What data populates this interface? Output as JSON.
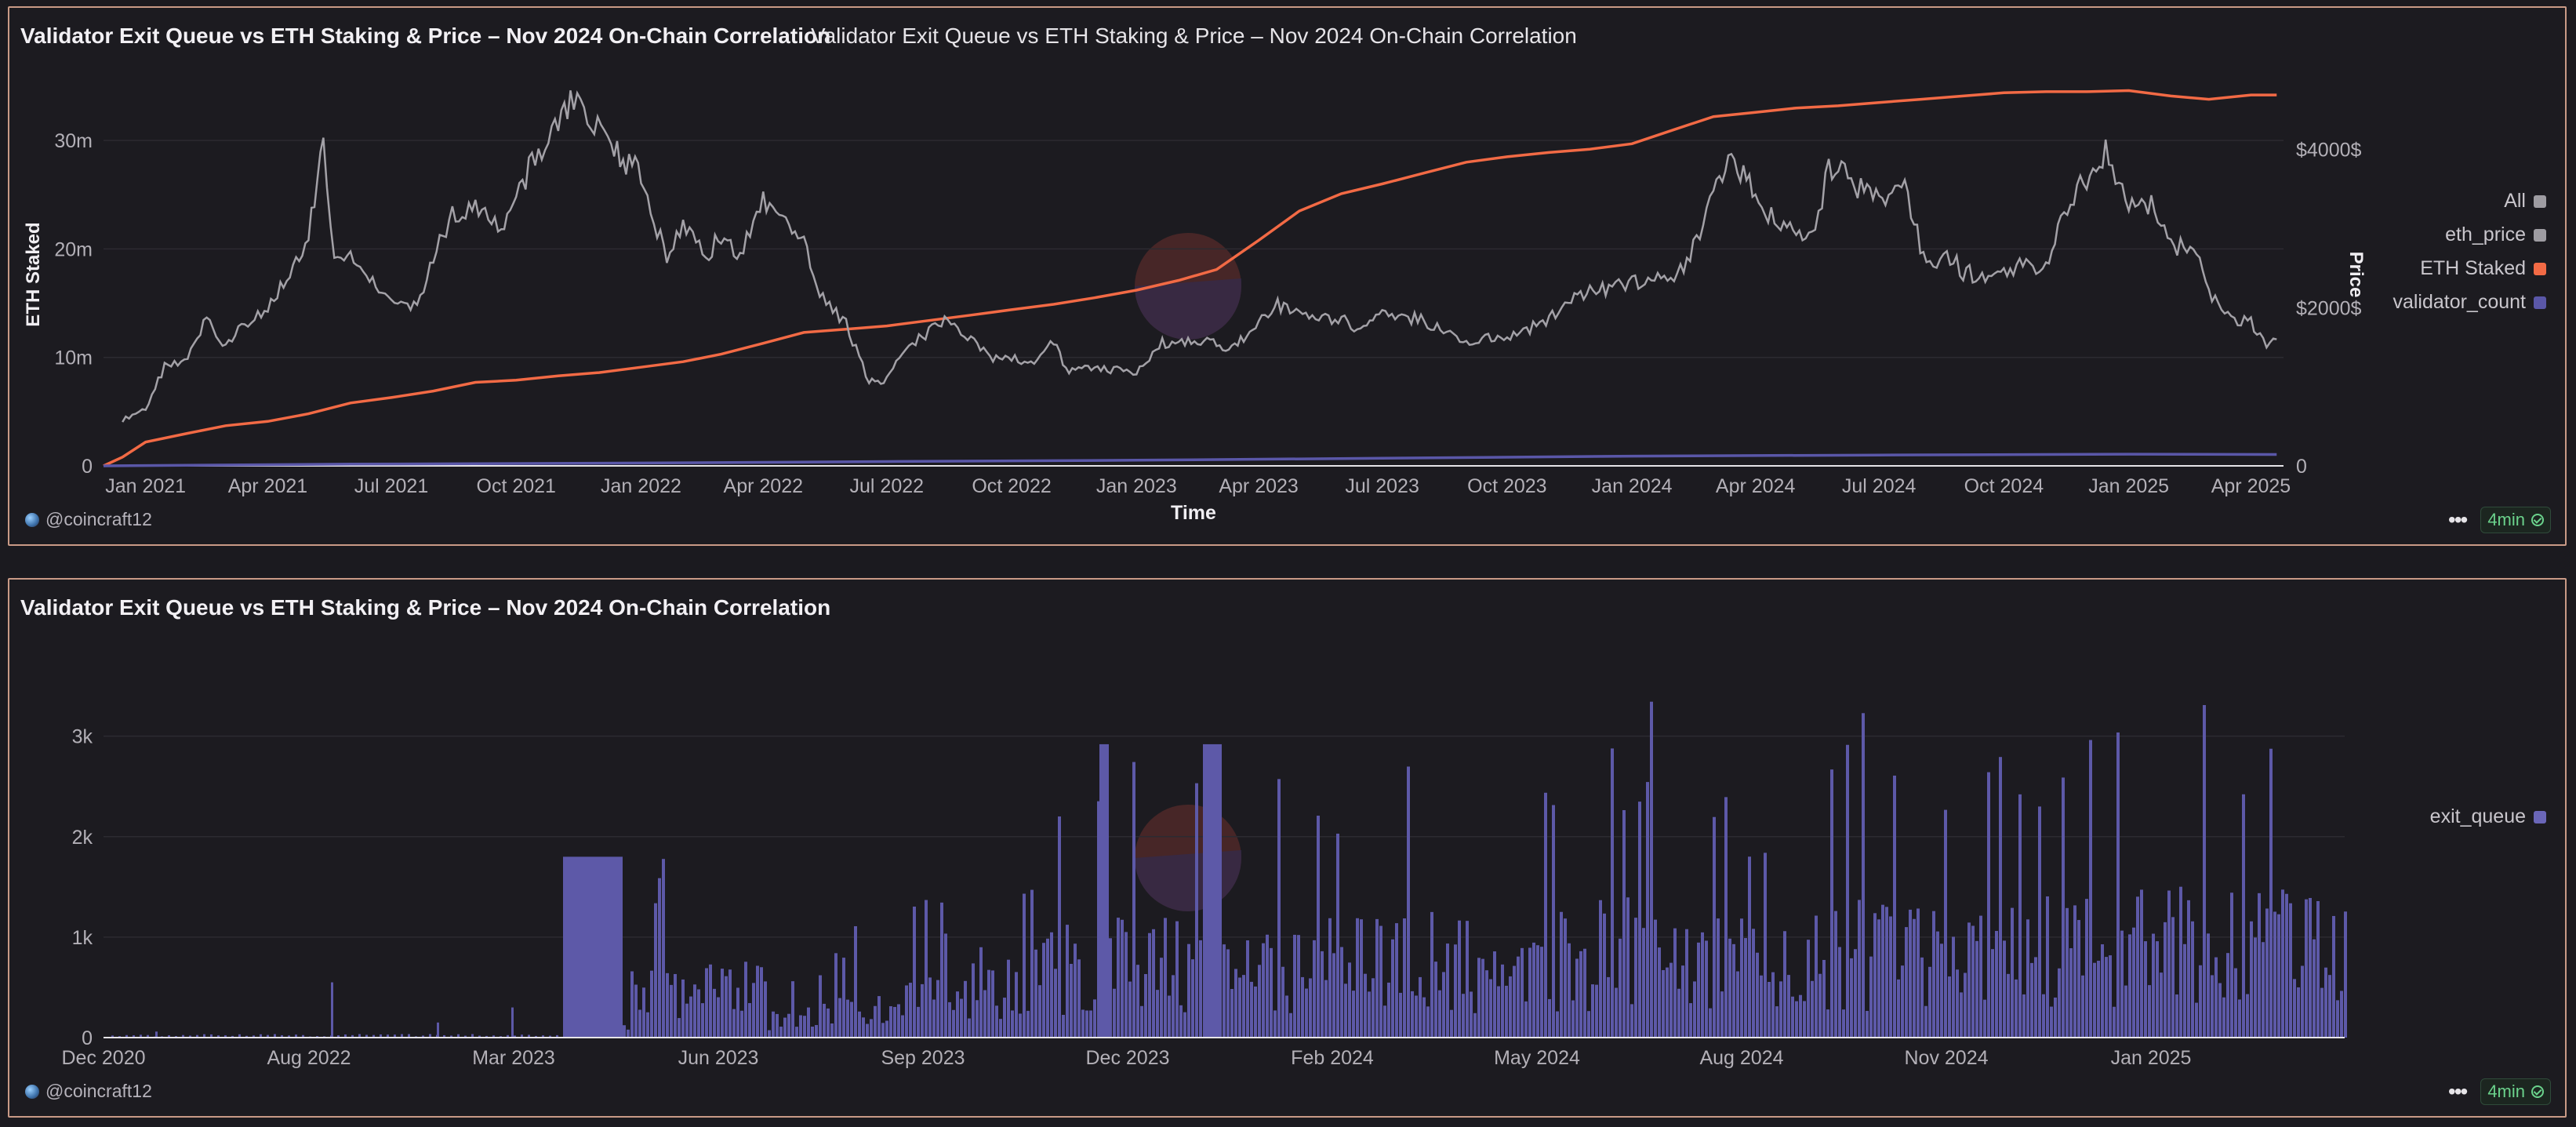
{
  "panels": {
    "top": {
      "title": "Validator Exit Queue vs ETH Staking & Price – Nov 2024 On-Chain Correlation",
      "subtitle": "Validator Exit Queue vs ETH Staking & Price – Nov 2024 On-Chain Correlation",
      "author": "@coincraft12",
      "age": "4min",
      "legend": [
        {
          "label": "All",
          "color": "#9e9ca2"
        },
        {
          "label": "eth_price",
          "color": "#9e9ca2"
        },
        {
          "label": "ETH Staked",
          "color": "#f26a45"
        },
        {
          "label": "validator_count",
          "color": "#5a57a8"
        }
      ]
    },
    "bottom": {
      "title": "Validator Exit Queue vs ETH Staking & Price – Nov 2024 On-Chain Correlation",
      "author": "@coincraft12",
      "age": "4min",
      "legend": [
        {
          "label": "exit_queue",
          "color": "#6a66b8"
        }
      ]
    }
  },
  "chart_data": [
    {
      "type": "line",
      "xlabel": "Time",
      "ylabel": "ETH Staked",
      "y2label": "Price",
      "x_ticks": [
        "Jan 2021",
        "Apr 2021",
        "Jul 2021",
        "Oct 2021",
        "Jan 2022",
        "Apr 2022",
        "Jul 2022",
        "Oct 2022",
        "Jan 2023",
        "Apr 2023",
        "Jul 2023",
        "Oct 2023",
        "Jan 2024",
        "Apr 2024",
        "Jul 2024",
        "Oct 2024",
        "Jan 2025",
        "Apr 2025"
      ],
      "y_ticks": [
        "0",
        "10m",
        "20m",
        "30m"
      ],
      "y2_ticks": [
        "0",
        "$2000$",
        "$4000$"
      ],
      "ylim": [
        0,
        35000000
      ],
      "y2lim": [
        0,
        4800
      ],
      "grid": true,
      "legend_position": "right",
      "series": [
        {
          "name": "ETH Staked",
          "color": "#f26a45",
          "x": [
            "2020-12-01",
            "2020-12-15",
            "2021-01-01",
            "2021-02-01",
            "2021-03-01",
            "2021-04-01",
            "2021-05-01",
            "2021-06-01",
            "2021-07-01",
            "2021-08-01",
            "2021-09-01",
            "2021-10-01",
            "2021-11-01",
            "2021-12-01",
            "2022-01-01",
            "2022-02-01",
            "2022-03-01",
            "2022-04-01",
            "2022-05-01",
            "2022-06-01",
            "2022-07-01",
            "2022-08-01",
            "2022-09-01",
            "2022-10-01",
            "2022-11-01",
            "2022-12-01",
            "2023-01-01",
            "2023-02-01",
            "2023-03-01",
            "2023-04-01",
            "2023-05-01",
            "2023-06-01",
            "2023-07-01",
            "2023-08-01",
            "2023-09-01",
            "2023-10-01",
            "2023-11-01",
            "2023-12-01",
            "2024-01-01",
            "2024-02-01",
            "2024-03-01",
            "2024-04-01",
            "2024-05-01",
            "2024-06-01",
            "2024-07-01",
            "2024-08-01",
            "2024-09-01",
            "2024-10-01",
            "2024-11-01",
            "2024-12-01",
            "2025-01-01",
            "2025-02-01",
            "2025-03-01",
            "2025-04-01",
            "2025-04-20"
          ],
          "y": [
            0,
            800000,
            2200000,
            3000000,
            3700000,
            4100000,
            4800000,
            5800000,
            6300000,
            6900000,
            7700000,
            7900000,
            8300000,
            8600000,
            9100000,
            9600000,
            10300000,
            11300000,
            12300000,
            12600000,
            12900000,
            13400000,
            13900000,
            14400000,
            14900000,
            15500000,
            16200000,
            17100000,
            18100000,
            20800000,
            23500000,
            25100000,
            26000000,
            27000000,
            28000000,
            28500000,
            28900000,
            29200000,
            29700000,
            31000000,
            32200000,
            32600000,
            33000000,
            33200000,
            33500000,
            33800000,
            34100000,
            34400000,
            34500000,
            34500000,
            34600000,
            34100000,
            33800000,
            34200000,
            34200000
          ]
        },
        {
          "name": "eth_price",
          "color": "#a3a1a7",
          "x": [
            "2020-12-15",
            "2021-01-01",
            "2021-01-15",
            "2021-02-01",
            "2021-02-15",
            "2021-03-01",
            "2021-03-15",
            "2021-04-01",
            "2021-04-15",
            "2021-05-01",
            "2021-05-12",
            "2021-05-20",
            "2021-06-01",
            "2021-06-15",
            "2021-07-01",
            "2021-07-20",
            "2021-08-01",
            "2021-08-15",
            "2021-09-01",
            "2021-09-20",
            "2021-10-01",
            "2021-10-15",
            "2021-11-01",
            "2021-11-10",
            "2021-11-25",
            "2021-12-10",
            "2022-01-01",
            "2022-01-20",
            "2022-02-01",
            "2022-02-20",
            "2022-03-01",
            "2022-03-15",
            "2022-04-01",
            "2022-04-20",
            "2022-05-01",
            "2022-05-15",
            "2022-06-01",
            "2022-06-18",
            "2022-07-01",
            "2022-07-15",
            "2022-08-01",
            "2022-08-15",
            "2022-09-01",
            "2022-09-15",
            "2022-10-01",
            "2022-10-20",
            "2022-11-01",
            "2022-11-10",
            "2022-12-01",
            "2022-12-20",
            "2023-01-01",
            "2023-01-20",
            "2023-02-01",
            "2023-03-01",
            "2023-03-10",
            "2023-04-01",
            "2023-04-15",
            "2023-05-01",
            "2023-06-01",
            "2023-06-15",
            "2023-07-01",
            "2023-08-01",
            "2023-08-20",
            "2023-09-01",
            "2023-10-01",
            "2023-10-25",
            "2023-11-15",
            "2023-12-01",
            "2023-12-15",
            "2024-01-01",
            "2024-01-20",
            "2024-02-01",
            "2024-02-20",
            "2024-03-01",
            "2024-03-12",
            "2024-04-01",
            "2024-04-15",
            "2024-05-01",
            "2024-05-15",
            "2024-05-25",
            "2024-06-01",
            "2024-06-20",
            "2024-07-01",
            "2024-07-20",
            "2024-08-05",
            "2024-08-20",
            "2024-09-01",
            "2024-09-15",
            "2024-10-01",
            "2024-10-15",
            "2024-11-01",
            "2024-11-12",
            "2024-12-01",
            "2024-12-15",
            "2025-01-01",
            "2025-01-20",
            "2025-02-01",
            "2025-02-20",
            "2025-03-01",
            "2025-03-15",
            "2025-04-01",
            "2025-04-10",
            "2025-04-20"
          ],
          "y": [
            580,
            730,
            1250,
            1350,
            1850,
            1500,
            1800,
            1950,
            2400,
            2900,
            4150,
            2600,
            2600,
            2400,
            2100,
            2000,
            2600,
            3200,
            3300,
            3000,
            3400,
            3900,
            4300,
            4600,
            4400,
            4000,
            3700,
            2600,
            3100,
            2700,
            2900,
            2700,
            3400,
            3000,
            2800,
            2100,
            1800,
            1050,
            1100,
            1500,
            1700,
            1900,
            1600,
            1350,
            1350,
            1300,
            1600,
            1200,
            1250,
            1200,
            1200,
            1550,
            1600,
            1550,
            1450,
            1800,
            2050,
            1900,
            1850,
            1700,
            1900,
            1850,
            1650,
            1600,
            1600,
            1800,
            2050,
            2200,
            2250,
            2300,
            2400,
            2350,
            2900,
            3400,
            4000,
            3450,
            3100,
            2900,
            3000,
            3800,
            3750,
            3450,
            3400,
            3500,
            2500,
            2700,
            2450,
            2400,
            2450,
            2550,
            2500,
            3200,
            3650,
            4000,
            3300,
            3300,
            2800,
            2700,
            2200,
            1900,
            1800,
            1550,
            1600
          ]
        },
        {
          "name": "validator_count",
          "color": "#5a57a8",
          "x": [
            "2020-12-01",
            "2021-06-01",
            "2022-01-01",
            "2022-07-01",
            "2023-01-01",
            "2023-07-01",
            "2024-01-01",
            "2024-07-01",
            "2025-01-01",
            "2025-04-20"
          ],
          "y": [
            0,
            160000,
            260000,
            400000,
            520000,
            700000,
            900000,
            1000000,
            1080000,
            1050000
          ]
        }
      ]
    },
    {
      "type": "bar",
      "x_ticks": [
        "Dec 2020",
        "Aug 2022",
        "Mar 2023",
        "Jun 2023",
        "Sep 2023",
        "Dec 2023",
        "Feb 2024",
        "May 2024",
        "Aug 2024",
        "Nov 2024",
        "Jan 2025"
      ],
      "y_ticks": [
        "0",
        "1k",
        "2k",
        "3k"
      ],
      "ylim": [
        0,
        3700
      ],
      "grid": true,
      "legend_position": "right",
      "series": [
        {
          "name": "exit_queue",
          "color": "#5d59a8",
          "x": [
            "2021-02",
            "2022-10",
            "2023-02",
            "2023-03",
            "2023-04",
            "2023-05",
            "2023-06",
            "2023-07",
            "2023-08",
            "2023-09",
            "2023-10",
            "2023-11",
            "2023-12",
            "2024-01",
            "2024-02",
            "2024-03",
            "2024-04",
            "2024-05",
            "2024-06",
            "2024-07",
            "2024-08",
            "2024-09",
            "2024-10",
            "2024-11",
            "2024-12",
            "2025-01",
            "2025-02",
            "2025-03"
          ],
          "y": [
            60,
            550,
            300,
            1800,
            1800,
            800,
            1200,
            1600,
            2100,
            2700,
            2900,
            2800,
            2900,
            2900,
            3000,
            3000,
            3100,
            3400,
            3200,
            2900,
            3300,
            3100,
            3300,
            3500,
            3600,
            3500,
            3400,
            3600
          ]
        }
      ]
    }
  ]
}
